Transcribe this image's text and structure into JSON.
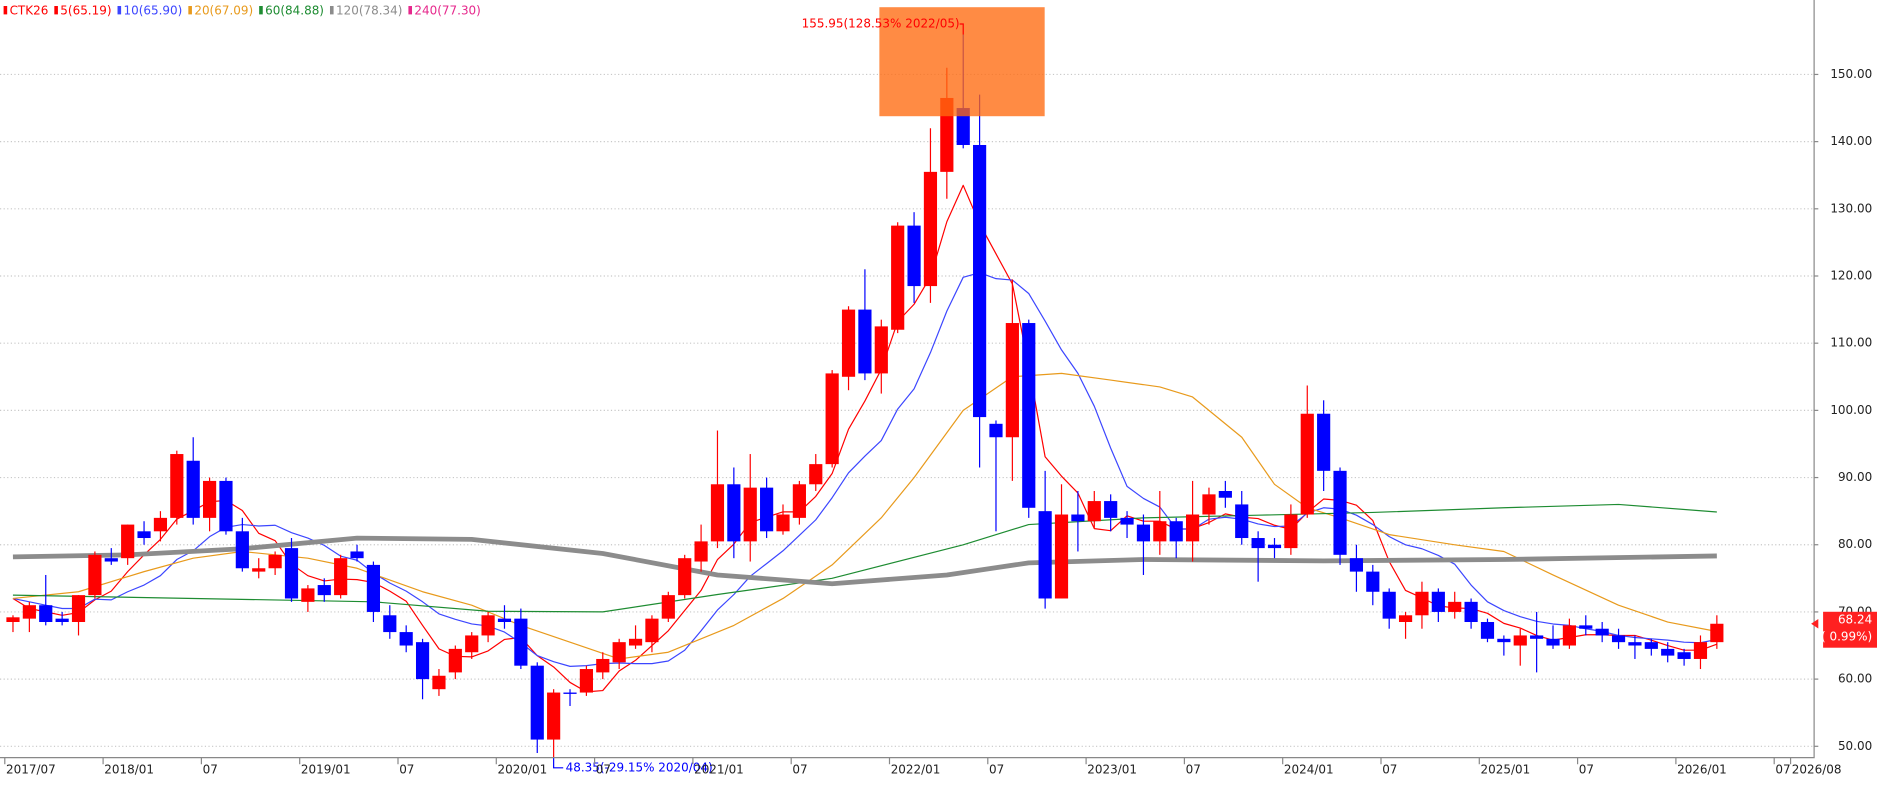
{
  "chart_data": {
    "type": "candlestick",
    "title": "CTK26",
    "title_color": "#ff0000",
    "up_color": "#ff0000",
    "down_color": "#0000ff",
    "categories": [
      "2017/07",
      "2017/08",
      "2017/09",
      "2017/10",
      "2017/11",
      "2017/12",
      "2018/01",
      "2018/02",
      "2018/03",
      "2018/04",
      "2018/05",
      "2018/06",
      "2018/07",
      "2018/08",
      "2018/09",
      "2018/10",
      "2018/11",
      "2018/12",
      "2019/01",
      "2019/02",
      "2019/03",
      "2019/04",
      "2019/05",
      "2019/06",
      "2019/07",
      "2019/08",
      "2019/09",
      "2019/10",
      "2019/11",
      "2019/12",
      "2020/01",
      "2020/02",
      "2020/03",
      "2020/04",
      "2020/05",
      "2020/06",
      "2020/07",
      "2020/08",
      "2020/09",
      "2020/10",
      "2020/11",
      "2020/12",
      "2021/01",
      "2021/02",
      "2021/03",
      "2021/04",
      "2021/05",
      "2021/06",
      "2021/07",
      "2021/08",
      "2021/09",
      "2021/10",
      "2021/11",
      "2021/12",
      "2022/01",
      "2022/02",
      "2022/03",
      "2022/04",
      "2022/05",
      "2022/06",
      "2022/07",
      "2022/08",
      "2022/09",
      "2022/10",
      "2022/11",
      "2022/12",
      "2023/01",
      "2023/02",
      "2023/03",
      "2023/04",
      "2023/05",
      "2023/06",
      "2023/07",
      "2023/08",
      "2023/09",
      "2023/10",
      "2023/11",
      "2023/12",
      "2024/01",
      "2024/02",
      "2024/03",
      "2024/04",
      "2024/05",
      "2024/06",
      "2024/07",
      "2024/08",
      "2024/09",
      "2024/10",
      "2024/11",
      "2024/12",
      "2025/01",
      "2025/02",
      "2025/03",
      "2025/04",
      "2025/05",
      "2025/06",
      "2025/07",
      "2025/08",
      "2025/09",
      "2025/10",
      "2025/11",
      "2025/12",
      "2026/01",
      "2026/02",
      "2026/03"
    ],
    "open": [
      68.5,
      69,
      71,
      69,
      68.5,
      72.5,
      78,
      78,
      82,
      82,
      84,
      92.5,
      84,
      89.5,
      82,
      76,
      76.5,
      79.5,
      71.5,
      74,
      72.5,
      79,
      77,
      69.5,
      67,
      65.5,
      58.5,
      61,
      64,
      66.5,
      69,
      69,
      62,
      51,
      58,
      58,
      61,
      62.5,
      65,
      65.5,
      69,
      72.5,
      77.5,
      80.5,
      89,
      80.5,
      88.5,
      82,
      84,
      89,
      92,
      105,
      115,
      105.5,
      112,
      127.5,
      118.5,
      135.5,
      145,
      139.5,
      98,
      96,
      113,
      85,
      72,
      84.5,
      83.5,
      86.5,
      84,
      83,
      80.5,
      83.5,
      80.5,
      84.5,
      88,
      86,
      81,
      80,
      79.5,
      84.5,
      99.5,
      91,
      78,
      76,
      73,
      68.5,
      69.5,
      73,
      70,
      71.5,
      68.5,
      66,
      65,
      66.5,
      66,
      65,
      68,
      67.5,
      66.5,
      65.5,
      65.5,
      64.5,
      64,
      63,
      65.5
    ],
    "high": [
      69.5,
      71.5,
      75.5,
      70,
      72.5,
      79,
      79.5,
      83,
      83.5,
      85,
      94,
      96,
      90,
      90,
      84,
      78,
      79,
      81,
      74,
      75,
      78.5,
      80,
      77.5,
      71,
      68,
      66,
      61.5,
      65,
      67,
      70,
      71,
      70.5,
      62.5,
      58.5,
      58.5,
      62,
      64,
      66,
      68,
      69.5,
      73,
      78.5,
      83,
      97,
      91.5,
      93.5,
      90,
      86,
      89.5,
      93.5,
      106,
      115.5,
      121,
      113.5,
      128,
      129.5,
      142,
      151,
      155.95,
      147,
      98.5,
      119.5,
      113.5,
      91,
      89,
      88,
      88,
      87.5,
      85,
      84.5,
      88,
      84,
      89.5,
      88.5,
      89.5,
      88,
      82,
      81,
      86,
      103.7,
      101.5,
      91.5,
      80,
      77,
      73.5,
      70,
      74.5,
      73.5,
      73,
      72,
      69,
      66.5,
      67.5,
      70,
      68,
      69,
      69.5,
      68.5,
      67.5,
      66.5,
      66,
      65.5,
      64.5,
      66.5,
      69.5
    ],
    "low": [
      67,
      67,
      68,
      68,
      66.5,
      72,
      77,
      77,
      80,
      80.5,
      83,
      83,
      82,
      81.5,
      76,
      75,
      75.5,
      71.5,
      70,
      71.5,
      72,
      77.5,
      68.5,
      66,
      64,
      57,
      57.5,
      60,
      63,
      65.5,
      67.5,
      61.5,
      49,
      48.35,
      56,
      57.5,
      60,
      61.5,
      64.5,
      64,
      68.5,
      72,
      76,
      79.5,
      78,
      77.5,
      81,
      81.5,
      83,
      88,
      91.5,
      103,
      104.5,
      102.5,
      111.5,
      116,
      116,
      131.5,
      139,
      91.5,
      82,
      89.5,
      84,
      70.5,
      72,
      79,
      82.5,
      82,
      81,
      75.5,
      78.5,
      78,
      77.5,
      83,
      85.5,
      80,
      74.5,
      78,
      78.5,
      84,
      88,
      77,
      73,
      71,
      67.5,
      66,
      67.5,
      68.5,
      69,
      67.5,
      65.5,
      63.5,
      62,
      61,
      64.5,
      64.5,
      66.5,
      65.5,
      64.5,
      63,
      63.5,
      62.5,
      62,
      61.5,
      64.5
    ],
    "close": [
      69.2,
      71,
      68.5,
      68.5,
      72.5,
      78.5,
      77.5,
      83,
      81,
      84,
      93.5,
      84,
      89.5,
      82,
      76.5,
      76.5,
      78.5,
      72,
      73.5,
      72.5,
      78,
      78,
      70,
      67,
      65,
      60,
      60.5,
      64.5,
      66.5,
      69.5,
      68.5,
      62,
      51,
      58,
      57.8,
      61.5,
      63,
      65.5,
      66,
      69,
      72.5,
      78,
      80.5,
      89,
      80.5,
      88.5,
      82,
      84.5,
      89,
      92,
      105.5,
      115,
      105.5,
      112.5,
      127.5,
      118.5,
      135.5,
      146.5,
      139.5,
      99,
      96,
      113,
      85.5,
      72,
      84.5,
      83.5,
      86.5,
      84,
      83,
      80.5,
      83.5,
      80.5,
      84.5,
      87.5,
      87,
      81,
      79.5,
      79.5,
      84.5,
      99.5,
      91,
      78.5,
      76,
      73,
      69,
      69.5,
      73,
      70,
      71.5,
      68.5,
      66,
      65.5,
      66.5,
      66,
      65,
      68,
      67.5,
      66.5,
      65.5,
      65,
      64.5,
      63.5,
      63,
      65.5,
      68.24
    ],
    "series": [
      {
        "name": "5(65.19)",
        "color": "#ff0000",
        "width": 1,
        "values": [
          72,
          70.5,
          70,
          69.5,
          69.9,
          71.8,
          73.1,
          76,
          78.5,
          80.8,
          83.8,
          85.1,
          86.4,
          86.6,
          85.1,
          81.7,
          80.6,
          77.1,
          75.4,
          74.6,
          74.9,
          74.8,
          74.4,
          73.1,
          71.6,
          68,
          64.5,
          63.4,
          63.3,
          64.2,
          65.9,
          66.2,
          63.5,
          61.8,
          59.5,
          58.1,
          58.3,
          61.2,
          62.8,
          65,
          67.2,
          70.2,
          73.2,
          77.8,
          80.1,
          83.3,
          84.1,
          84.9,
          84.9,
          87.2,
          90.6,
          97.2,
          101.4,
          106.1,
          113.2,
          115.8,
          119.9,
          128.1,
          133.5,
          127.8,
          123.3,
          118.8,
          106.6,
          93.1,
          90.2,
          87.7,
          82.4,
          82.1,
          84.3,
          83.5,
          83.5,
          82.3,
          82.4,
          83.3,
          84.6,
          84.1,
          83.9,
          82.9,
          82.3,
          84.8,
          86.8,
          86.6,
          85.9,
          83.6,
          77.5,
          73.2,
          72.1,
          70.9,
          70.6,
          70.5,
          69.8,
          68.3,
          67.6,
          66.5,
          65.8,
          66.2,
          66.6,
          66.6,
          66.5,
          66.5,
          65.8,
          65,
          64.3,
          64.3,
          65.19
        ]
      },
      {
        "name": "10(65.90)",
        "color": "#3c46ff",
        "width": 1,
        "values": [
          72,
          71.5,
          71,
          70.5,
          70.5,
          71.9,
          71.8,
          73,
          74,
          75.4,
          77.8,
          79.1,
          81.2,
          82.6,
          83,
          82.8,
          82.9,
          81.8,
          81,
          79.9,
          78.3,
          77.7,
          75.8,
          74.3,
          73.1,
          71.5,
          69.7,
          68.9,
          68.2,
          67.9,
          67,
          65.4,
          63.5,
          62.6,
          61.9,
          62,
          62.3,
          62.4,
          62.3,
          62.3,
          62.7,
          64.3,
          67.2,
          70.3,
          72.6,
          75.3,
          77.2,
          79.1,
          81.4,
          83.7,
          87,
          90.7,
          93.2,
          95.5,
          100.2,
          103.2,
          108.6,
          114.8,
          119.8,
          120.5,
          119.6,
          119.4,
          117.4,
          113.3,
          109,
          105.5,
          100.6,
          94.4,
          88.7,
          86.9,
          85.6,
          82.4,
          82.3,
          83.8,
          84.1,
          83.8,
          83.1,
          82.7,
          82.8,
          84.7,
          85.5,
          85.3,
          84.4,
          83,
          81.2,
          80,
          79.4,
          78.4,
          77.1,
          74,
          71.5,
          70.2,
          69.3,
          68.6,
          68.2,
          68,
          67.5,
          67.1,
          66.5,
          66.2,
          66,
          65.8,
          65.5,
          65.4,
          65.9
        ]
      },
      {
        "name": "20(67.09)",
        "color": "#e89a1c",
        "width": 1,
        "x": [
          0,
          4,
          8,
          11,
          14,
          18,
          21,
          25,
          28,
          31,
          34,
          37,
          40,
          44,
          47,
          50,
          53,
          55,
          58,
          61,
          64,
          67,
          70,
          72,
          75,
          77,
          79,
          81,
          84,
          88,
          91,
          94,
          98,
          101,
          104
        ],
        "values": [
          72,
          73,
          76,
          78,
          79,
          78,
          76.5,
          73,
          71,
          68,
          65.5,
          63,
          64,
          68,
          72,
          77,
          84,
          90,
          100,
          105,
          105.5,
          104.5,
          103.5,
          102,
          96,
          89,
          85.5,
          84,
          81.5,
          80,
          79,
          75.5,
          71,
          68.5,
          67.09
        ]
      },
      {
        "name": "60(84.88)",
        "color": "#1e8c32",
        "width": 1,
        "x": [
          0,
          22,
          29,
          36,
          43,
          50,
          58,
          62,
          69,
          76,
          83,
          91,
          98,
          104
        ],
        "values": [
          72.5,
          71.5,
          70.1,
          70,
          72.6,
          75,
          80,
          83,
          84,
          84.4,
          84.8,
          85.5,
          86,
          84.88
        ]
      },
      {
        "name": "120(78.34)",
        "color": "#8c8c8c",
        "width": 4,
        "x": [
          0,
          7,
          14,
          21,
          28,
          36,
          43,
          50,
          57,
          62,
          69,
          80,
          91,
          104
        ],
        "values": [
          78.2,
          78.5,
          79.4,
          81,
          80.8,
          78.7,
          75.5,
          74.2,
          75.5,
          77.3,
          77.8,
          77.6,
          77.8,
          78.34
        ]
      },
      {
        "name": "240(77.30)",
        "color": "#e6288c"
      }
    ],
    "ylim": [
      48.4,
      160.9
    ],
    "yticks": [
      {
        "value": 50,
        "label": "50.00"
      },
      {
        "value": 60,
        "label": "60.00"
      },
      {
        "value": 70,
        "label": "70.00"
      },
      {
        "value": 80,
        "label": "80.00"
      },
      {
        "value": 90,
        "label": "90.00"
      },
      {
        "value": 100,
        "label": "100.00"
      },
      {
        "value": 110,
        "label": "110.00"
      },
      {
        "value": 120,
        "label": "120.00"
      },
      {
        "value": 130,
        "label": "130.00"
      },
      {
        "value": 140,
        "label": "140.00"
      },
      {
        "value": 150,
        "label": "150.00"
      }
    ],
    "xlim": [
      0,
      110.4
    ],
    "xticks": [
      {
        "value": 0,
        "label": "2017/07"
      },
      {
        "value": 6,
        "label": "2018/01"
      },
      {
        "value": 12,
        "label": "07"
      },
      {
        "value": 18,
        "label": "2019/01"
      },
      {
        "value": 24,
        "label": "07"
      },
      {
        "value": 30,
        "label": "2020/01"
      },
      {
        "value": 36,
        "label": "07"
      },
      {
        "value": 42,
        "label": "2021/01"
      },
      {
        "value": 48,
        "label": "07"
      },
      {
        "value": 54,
        "label": "2022/01"
      },
      {
        "value": 60,
        "label": "07"
      },
      {
        "value": 66,
        "label": "2023/01"
      },
      {
        "value": 72,
        "label": "07"
      },
      {
        "value": 78,
        "label": "2024/01"
      },
      {
        "value": 84,
        "label": "07"
      },
      {
        "value": 90,
        "label": "2025/01"
      },
      {
        "value": 96,
        "label": "07"
      },
      {
        "value": 102,
        "label": "2026/01"
      },
      {
        "value": 108,
        "label": "07"
      },
      {
        "value": 109,
        "label": "2026/08"
      }
    ],
    "grid": true,
    "annotations": [
      {
        "text": "155.95(128.53% 2022/05)",
        "color": "#ff0000"
      },
      {
        "text": "48.35(-29.15% 2020/04)",
        "color": "#0000ff"
      }
    ],
    "price_tag": {
      "value": 68.24,
      "change": "( 0.99%)",
      "color": "#ff2020"
    }
  }
}
